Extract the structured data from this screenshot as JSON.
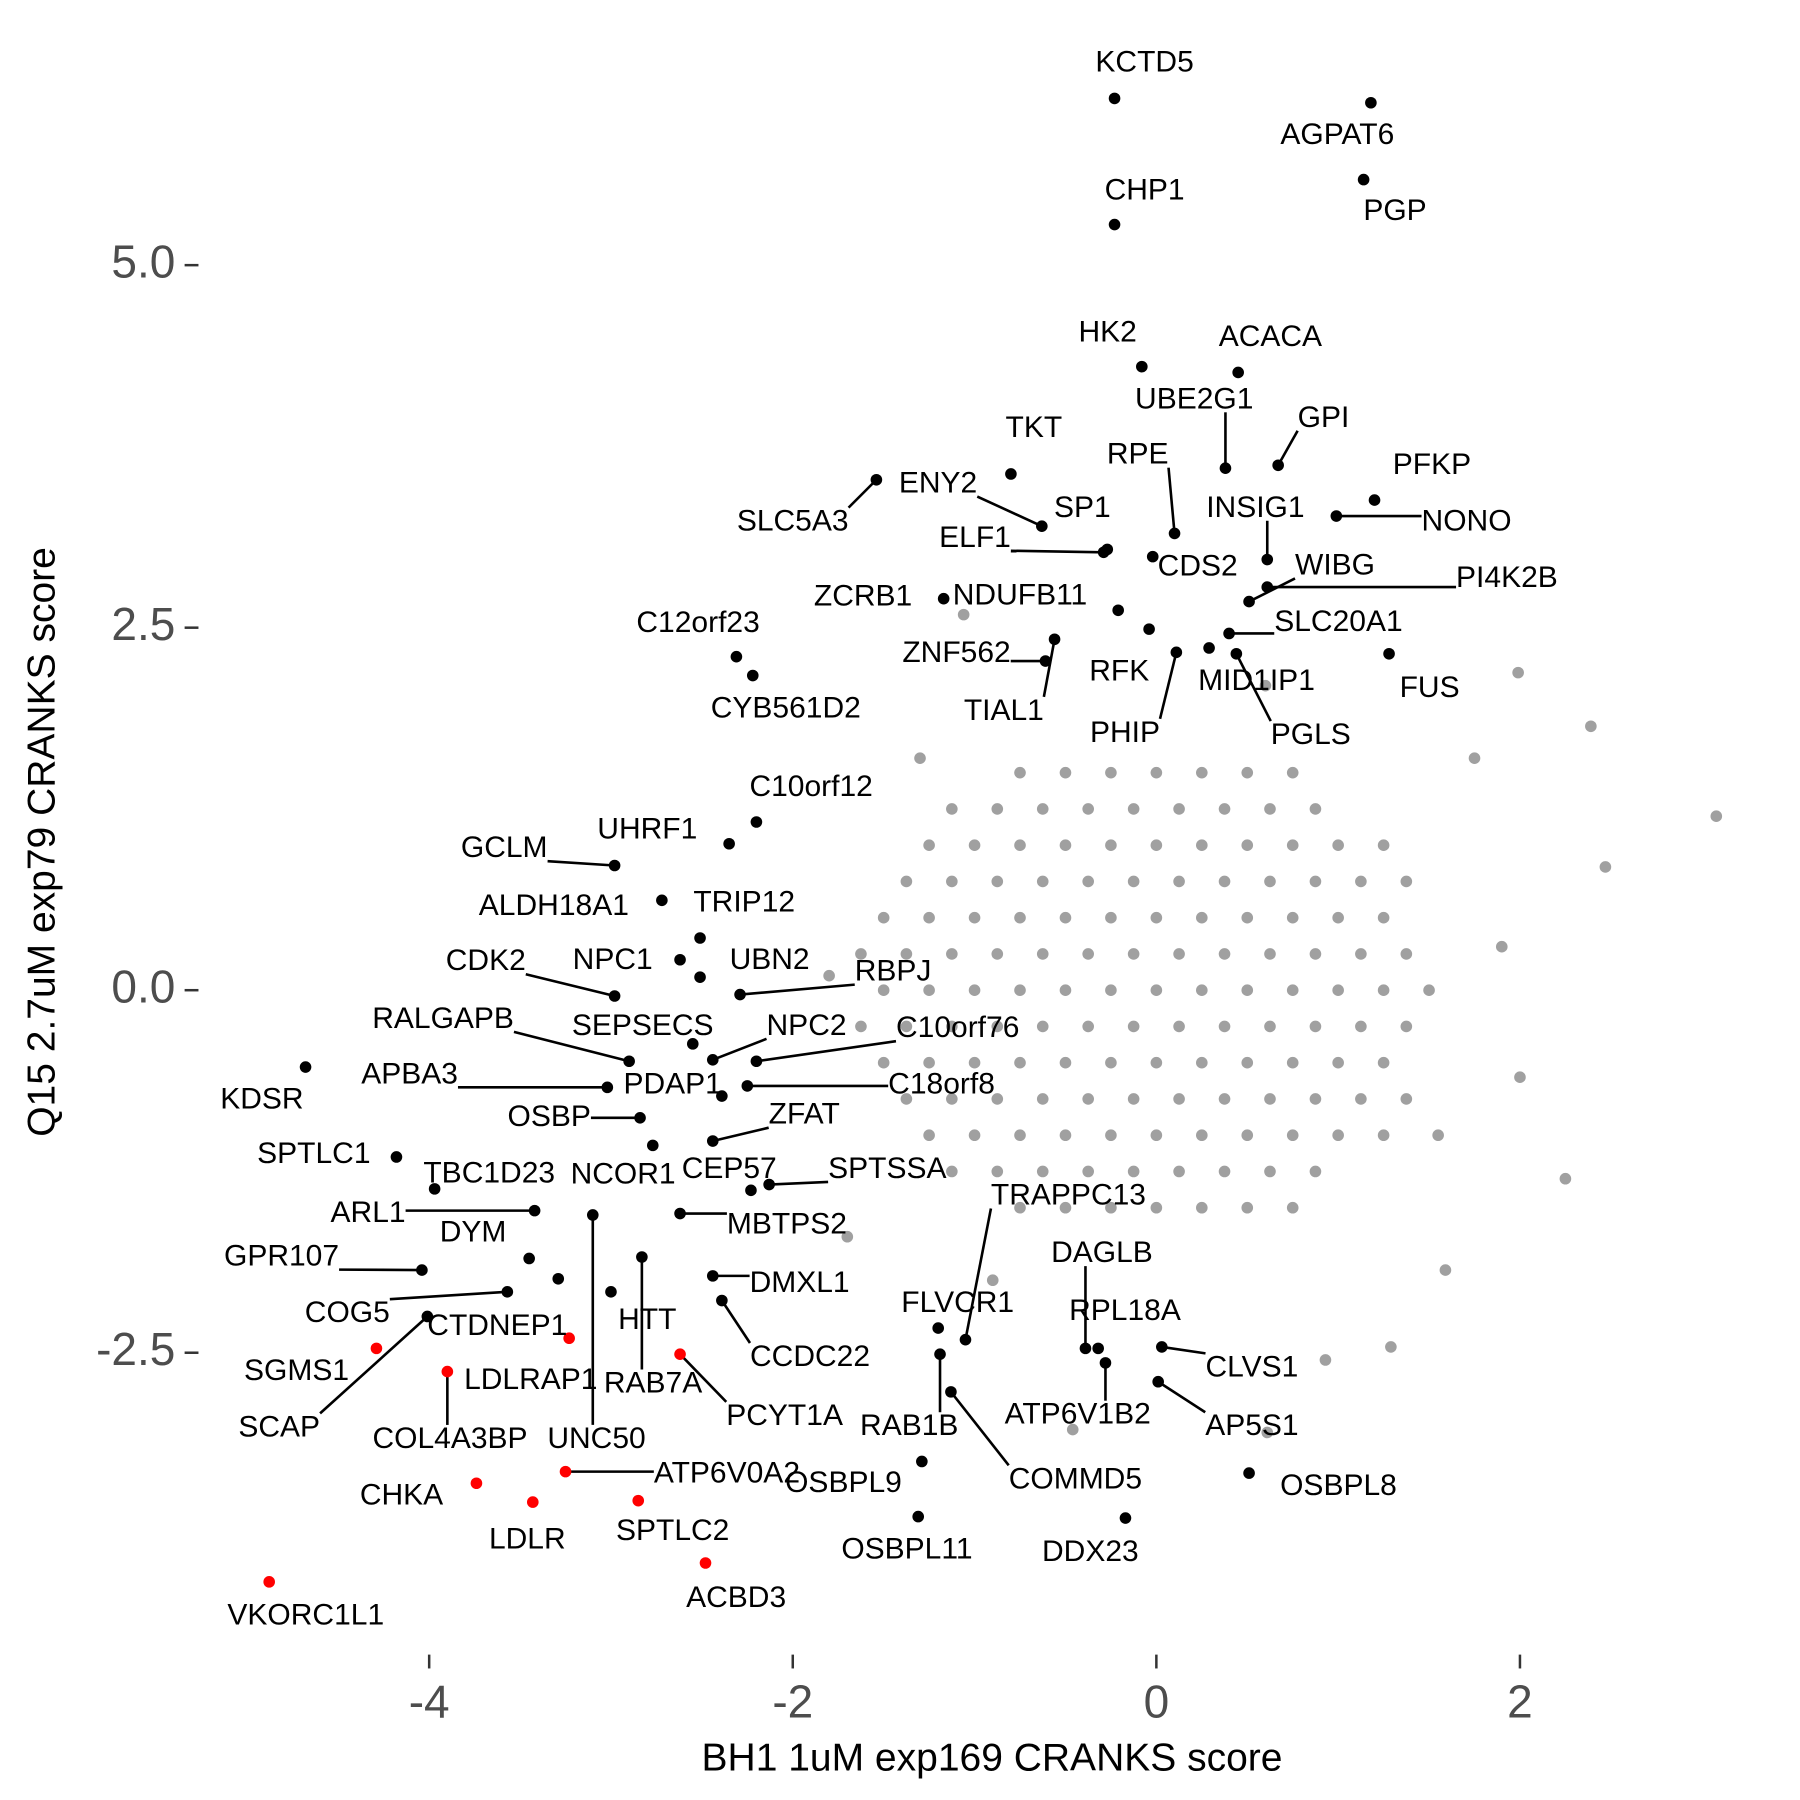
{
  "chart_data": {
    "type": "scatter",
    "xlabel": "BH1 1uM exp169 CRANKS score",
    "ylabel": "Q15 2.7uM exp79 CRANKS score",
    "xlim": [
      -5.25,
      3.35
    ],
    "ylim": [
      -4.55,
      6.55
    ],
    "xticks": [
      -4,
      -2,
      0,
      2
    ],
    "yticks": [
      {
        "value": 5.0,
        "label": "5.0"
      },
      {
        "value": 2.5,
        "label": "2.5"
      },
      {
        "value": 0,
        "label": "0.0"
      },
      -2.5
    ],
    "series": [
      {
        "color": "#a0a0a0",
        "x": [
          -0.75,
          -0.5,
          -0.25,
          0,
          0.25,
          0.5,
          0.75,
          -1.125,
          -0.875,
          -0.625,
          -0.375,
          -0.125,
          0.125,
          0.375,
          0.625,
          0.875,
          -1.25,
          -1,
          -0.75,
          -0.5,
          -0.25,
          0,
          0.25,
          0.5,
          0.75,
          1,
          1.25,
          -1.375,
          -1.125,
          -0.875,
          -0.625,
          -0.375,
          -0.125,
          0.125,
          0.375,
          0.625,
          0.875,
          1.125,
          1.375,
          -1.5,
          -1.25,
          -1,
          -0.75,
          -0.5,
          -0.25,
          0,
          0.25,
          0.5,
          0.75,
          1,
          1.25,
          -1.625,
          -1.375,
          -1.125,
          -0.875,
          -0.625,
          -0.375,
          -0.125,
          0.125,
          0.375,
          0.625,
          0.875,
          1.125,
          1.375,
          -1.5,
          -1.25,
          -1,
          -0.75,
          -0.5,
          -0.25,
          0,
          0.25,
          0.5,
          0.75,
          1,
          1.25,
          1.5,
          -1.625,
          -1.375,
          -1.125,
          -0.875,
          -0.625,
          -0.375,
          -0.125,
          0.125,
          0.375,
          0.625,
          0.875,
          1.125,
          1.375,
          -1.5,
          -1.25,
          -1,
          -0.75,
          -0.5,
          -0.25,
          0,
          0.25,
          0.5,
          0.75,
          1,
          1.25,
          -1.375,
          -1.125,
          -0.875,
          -0.625,
          -0.375,
          -0.125,
          0.125,
          0.375,
          0.625,
          0.875,
          1.125,
          1.375,
          -1.25,
          -1,
          -0.75,
          -0.5,
          -0.25,
          0,
          0.25,
          0.5,
          0.75,
          1,
          1.25,
          -1.125,
          -0.875,
          -0.625,
          -0.375,
          -0.125,
          0.125,
          0.375,
          0.625,
          0.875,
          -0.75,
          -0.5,
          -0.25,
          0,
          0.25,
          0.5,
          0.75,
          3.08,
          2.39,
          1.99,
          2.47,
          2.25,
          1.59,
          1.29,
          0.93,
          0.61,
          -0.46,
          -1.06,
          1.75,
          1.9,
          2.0,
          -1.7,
          -1.3,
          0.6,
          -0.9,
          1.55,
          -1.8
        ],
        "values": [
          1.5,
          1.5,
          1.5,
          1.5,
          1.5,
          1.5,
          1.5,
          1.25,
          1.25,
          1.25,
          1.25,
          1.25,
          1.25,
          1.25,
          1.25,
          1.25,
          1,
          1,
          1,
          1,
          1,
          1,
          1,
          1,
          1,
          1,
          1,
          0.75,
          0.75,
          0.75,
          0.75,
          0.75,
          0.75,
          0.75,
          0.75,
          0.75,
          0.75,
          0.75,
          0.75,
          0.5,
          0.5,
          0.5,
          0.5,
          0.5,
          0.5,
          0.5,
          0.5,
          0.5,
          0.5,
          0.5,
          0.5,
          0.25,
          0.25,
          0.25,
          0.25,
          0.25,
          0.25,
          0.25,
          0.25,
          0.25,
          0.25,
          0.25,
          0.25,
          0.25,
          0,
          0,
          0,
          0,
          0,
          0,
          0,
          0,
          0,
          0,
          0,
          0,
          0,
          -0.25,
          -0.25,
          -0.25,
          -0.25,
          -0.25,
          -0.25,
          -0.25,
          -0.25,
          -0.25,
          -0.25,
          -0.25,
          -0.25,
          -0.25,
          -0.5,
          -0.5,
          -0.5,
          -0.5,
          -0.5,
          -0.5,
          -0.5,
          -0.5,
          -0.5,
          -0.5,
          -0.5,
          -0.5,
          -0.75,
          -0.75,
          -0.75,
          -0.75,
          -0.75,
          -0.75,
          -0.75,
          -0.75,
          -0.75,
          -0.75,
          -0.75,
          -0.75,
          -1,
          -1,
          -1,
          -1,
          -1,
          -1,
          -1,
          -1,
          -1,
          -1,
          -1,
          -1.25,
          -1.25,
          -1.25,
          -1.25,
          -1.25,
          -1.25,
          -1.25,
          -1.25,
          -1.25,
          -1.5,
          -1.5,
          -1.5,
          -1.5,
          -1.5,
          -1.5,
          -1.5,
          1.2,
          1.82,
          2.19,
          0.85,
          -1.3,
          -1.93,
          -2.46,
          -2.55,
          -3.05,
          -3.03,
          2.59,
          1.6,
          0.3,
          -0.6,
          -1.7,
          1.6,
          2.1,
          -2.0,
          -1.0,
          0.1
        ]
      },
      {
        "color": "#000000",
        "labels": [
          "KCTD5",
          "AGPAT6",
          "PGP",
          "CHP1",
          "HK2",
          "ACACA",
          "UBE2G1",
          "GPI",
          "TKT",
          "RPE",
          "PFKP",
          "NONO",
          "INSIG1",
          "WIBG",
          "PI4K2B",
          "SLC20A1",
          "FUS",
          "MID1IP1",
          "PGLS",
          "RFK",
          "PHIP",
          "CDS2",
          "SLC5A3",
          "ENY2",
          "SP1",
          "ELF1",
          "ZCRB1",
          "NDUFB11",
          "ZNF562",
          "TIAL1",
          "C12orf23",
          "CYB561D2",
          "C10orf12",
          "UHRF1",
          "GCLM",
          "ALDH18A1",
          "TRIP12",
          "CDK2",
          "NPC1",
          "UBN2",
          "RBPJ",
          "RALGAPB",
          "SEPSECS",
          "NPC2",
          "C10orf76",
          "APBA3",
          "PDAP1",
          "C18orf8",
          "KDSR",
          "OSBP",
          "ZFAT",
          "SPTLC1",
          "TBC1D23",
          "NCOR1",
          "CEP57",
          "SPTSSA",
          "ARL1",
          "MBTPS2",
          "DYM",
          "GPR107",
          "DMXL1",
          "COG5",
          "CTDNEP1",
          "HTT",
          "RAB7A",
          "CCDC22",
          "UNC50",
          "SCAP",
          "FLVCR1",
          "TRAPPC13",
          "RAB1B",
          "COMMD5",
          "DAGLB",
          "RPL18A",
          "ATP6V1B2",
          "CLVS1",
          "AP5S1",
          "OSBPL9",
          "OSBPL8",
          "OSBPL11",
          "DDX23"
        ],
        "x": [
          -0.23,
          1.18,
          1.14,
          -0.23,
          -0.08,
          0.45,
          0.38,
          0.67,
          -0.8,
          0.1,
          1.2,
          0.99,
          0.61,
          0.51,
          0.61,
          0.4,
          1.28,
          0.29,
          0.44,
          -0.04,
          0.11,
          -0.02,
          -1.54,
          -0.63,
          -0.27,
          -0.29,
          -1.17,
          -0.21,
          -0.61,
          -0.56,
          -2.31,
          -2.22,
          -2.2,
          -2.35,
          -2.98,
          -2.72,
          -2.51,
          -2.98,
          -2.62,
          -2.51,
          -2.29,
          -2.9,
          -2.55,
          -2.44,
          -2.2,
          -3.02,
          -2.39,
          -2.25,
          -4.68,
          -2.84,
          -2.44,
          -4.18,
          -3.97,
          -2.77,
          -2.23,
          -2.13,
          -3.42,
          -2.62,
          -3.45,
          -4.04,
          -2.44,
          -3.57,
          -3.29,
          -3.0,
          -2.83,
          -2.39,
          -3.1,
          -4.01,
          -1.2,
          -1.05,
          -1.19,
          -1.13,
          -0.39,
          -0.32,
          -0.28,
          0.03,
          0.01,
          -1.29,
          0.51,
          -1.31,
          -0.17
        ],
        "values": [
          6.15,
          6.12,
          5.59,
          5.28,
          4.3,
          4.26,
          3.6,
          3.62,
          3.56,
          3.15,
          3.38,
          3.27,
          2.97,
          2.68,
          2.78,
          2.46,
          2.32,
          2.36,
          2.32,
          2.49,
          2.33,
          2.99,
          3.52,
          3.2,
          3.04,
          3.02,
          2.7,
          2.62,
          2.27,
          2.42,
          2.3,
          2.17,
          1.16,
          1.01,
          0.86,
          0.62,
          0.36,
          -0.04,
          0.21,
          0.09,
          -0.03,
          -0.49,
          -0.37,
          -0.48,
          -0.49,
          -0.67,
          -0.73,
          -0.66,
          -0.53,
          -0.88,
          -1.04,
          -1.15,
          -1.37,
          -1.07,
          -1.38,
          -1.34,
          -1.52,
          -1.54,
          -1.85,
          -1.93,
          -1.97,
          -2.08,
          -1.99,
          -2.08,
          -1.84,
          -2.14,
          -1.55,
          -2.25,
          -2.33,
          -2.41,
          -2.51,
          -2.77,
          -2.47,
          -2.47,
          -2.57,
          -2.46,
          -2.7,
          -3.25,
          -3.33,
          -3.63,
          -3.64
        ]
      },
      {
        "color": "#ff0000",
        "labels": [
          "VKORC1L1",
          "CHKA",
          "LDLR",
          "SPTLC2",
          "ACBD3",
          "ATP6V0A2",
          "COL4A3BP",
          "PCYT1A",
          "SGMS1",
          "LDLRAP1"
        ],
        "x": [
          -4.88,
          -3.74,
          -3.43,
          -2.85,
          -2.48,
          -3.25,
          -3.9,
          -2.62,
          -4.29,
          -3.23
        ],
        "values": [
          -4.08,
          -3.4,
          -3.53,
          -3.52,
          -3.95,
          -3.32,
          -2.63,
          -2.51,
          -2.47,
          -2.4
        ]
      }
    ]
  }
}
